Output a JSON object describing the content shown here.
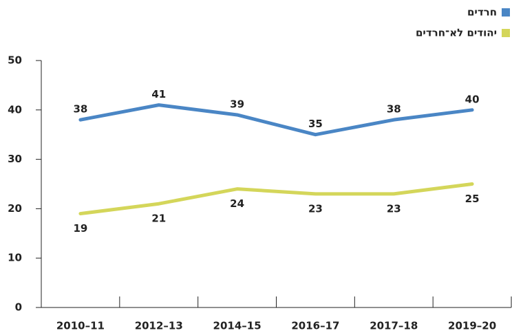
{
  "chart_data": {
    "type": "line",
    "categories": [
      "2010–11",
      "2012–13",
      "2014–15",
      "2016–17",
      "2017–18",
      "2019–20"
    ],
    "series": [
      {
        "name": "חרדים",
        "color": "#4a86c5",
        "values": [
          38,
          41,
          39,
          35,
          38,
          40
        ]
      },
      {
        "name": "יהודים לא־חרדים",
        "color": "#d4d65a",
        "values": [
          19,
          21,
          24,
          23,
          23,
          25
        ]
      }
    ],
    "ylim": [
      0,
      50
    ],
    "yticks": [
      0,
      10,
      20,
      30,
      40,
      50
    ],
    "legend": "top-right"
  }
}
